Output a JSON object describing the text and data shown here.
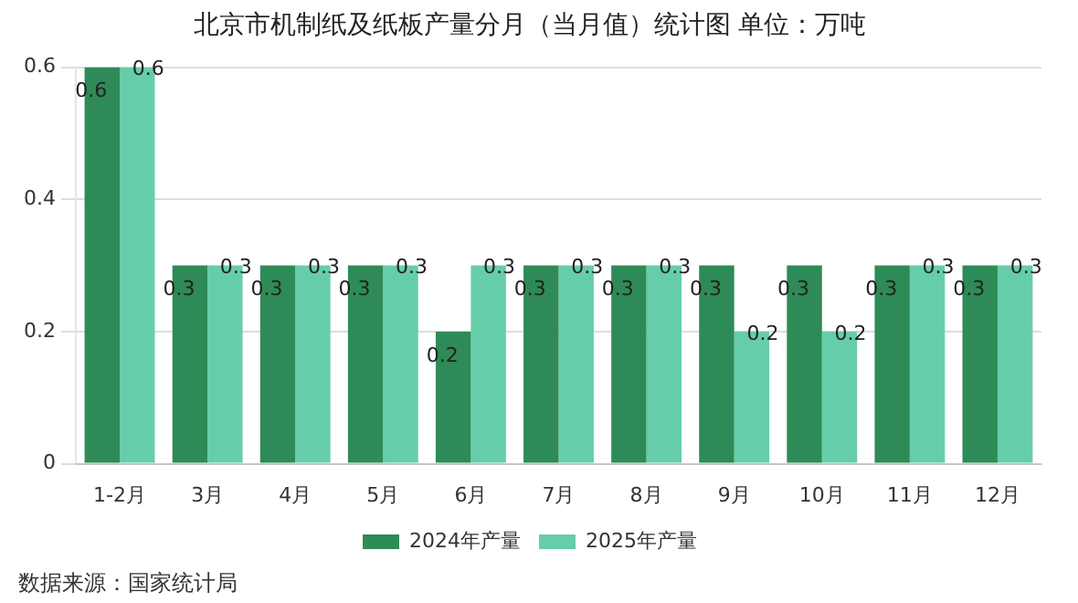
{
  "chart_data": {
    "type": "bar",
    "title": "北京市机制纸及纸板产量分月（当月值）统计图 单位：万吨",
    "categories": [
      "1-2月",
      "3月",
      "4月",
      "5月",
      "6月",
      "7月",
      "8月",
      "9月",
      "10月",
      "11月",
      "12月"
    ],
    "series": [
      {
        "name": "2024年产量",
        "color": "#2e8b57",
        "values": [
          0.6,
          0.3,
          0.3,
          0.3,
          0.2,
          0.3,
          0.3,
          0.3,
          0.3,
          0.3,
          0.3
        ]
      },
      {
        "name": "2025年产量",
        "color": "#66cdaa",
        "values": [
          0.6,
          0.3,
          0.3,
          0.3,
          0.3,
          0.3,
          0.3,
          0.2,
          0.2,
          0.3,
          0.3
        ]
      }
    ],
    "ylim": [
      0,
      0.6
    ],
    "yticks": [
      0,
      0.2,
      0.4,
      0.6
    ],
    "grid": "y",
    "legend": "bottom",
    "data_labels": true,
    "annotations": [
      "数据来源：国家统计局"
    ]
  }
}
